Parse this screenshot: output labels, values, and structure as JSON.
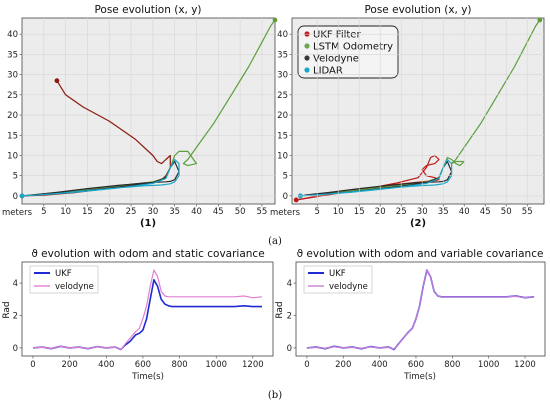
{
  "figure": {
    "caption_a": "(a)",
    "caption_b": "(b)"
  },
  "colors": {
    "ukf_filter": "#c01818",
    "lstm": "#6aa84f",
    "velodyne_pose": "#3a3a3a",
    "lidar": "#1aa6c8",
    "ukf_theta": "#1f2bd6",
    "velodyne_theta": "#e07fd0"
  },
  "chart_data": [
    {
      "type": "line",
      "panel_label": "(1)",
      "title": "Pose evolution (x, y)",
      "xlabel": "meters",
      "ylabel": "",
      "xlim": [
        0,
        58
      ],
      "ylim": [
        -2,
        44
      ],
      "xticks": [
        5,
        10,
        15,
        20,
        25,
        30,
        35,
        40,
        45,
        50,
        55
      ],
      "yticks": [
        0,
        5,
        10,
        15,
        20,
        25,
        30,
        35,
        40
      ],
      "grid": true,
      "series": [
        {
          "name": "UKF Filter",
          "color": "#8b1a10",
          "x": [
            8,
            10,
            14,
            20,
            26,
            30,
            31,
            32,
            33,
            34,
            34,
            33,
            32,
            31,
            30,
            28,
            24,
            18,
            12,
            5,
            0
          ],
          "y": [
            28.5,
            25,
            22,
            18.5,
            14,
            10,
            8.5,
            8,
            9,
            10,
            7,
            5,
            4,
            3.5,
            3.2,
            3,
            2.5,
            1.6,
            0.8,
            0.2,
            0
          ]
        },
        {
          "name": "LSTM Odometry",
          "color": "#5e9e3c",
          "x": [
            0,
            6,
            12,
            18,
            24,
            30,
            33,
            34,
            35,
            36,
            38,
            39,
            40,
            38,
            37,
            38,
            40,
            44,
            48,
            52,
            55,
            57,
            58
          ],
          "y": [
            0,
            0.6,
            1.3,
            2,
            2.7,
            3.5,
            4.5,
            7,
            10,
            11,
            11,
            9.5,
            8,
            7.5,
            8,
            9,
            12,
            18,
            25,
            32,
            38,
            42,
            43.5
          ]
        },
        {
          "name": "Velodyne",
          "color": "#2b2b2b",
          "x": [
            0,
            6,
            12,
            18,
            24,
            30,
            33,
            34,
            35,
            36,
            35,
            34,
            33,
            31,
            28,
            22,
            15,
            8,
            2
          ],
          "y": [
            0,
            0.5,
            1,
            1.7,
            2.4,
            3.3,
            4.5,
            7,
            8.5,
            6,
            4,
            3.6,
            3.5,
            3.4,
            3.2,
            2.6,
            1.8,
            0.9,
            0.2
          ]
        },
        {
          "name": "LIDAR",
          "color": "#1aa6c8",
          "x": [
            0,
            6,
            12,
            18,
            24,
            30,
            33,
            34,
            35,
            36,
            36,
            35,
            34,
            32,
            28,
            22,
            15,
            8,
            2
          ],
          "y": [
            0,
            0.4,
            0.9,
            1.5,
            2.2,
            3.1,
            4.3,
            7,
            9,
            8,
            5,
            3.5,
            3,
            2.7,
            2.5,
            2,
            1.3,
            0.6,
            0.1
          ]
        }
      ]
    },
    {
      "type": "line",
      "panel_label": "(2)",
      "title": "Pose evolution (x, y)",
      "xlabel": "meters",
      "ylabel": "",
      "xlim": [
        -1,
        59
      ],
      "ylim": [
        -2,
        44
      ],
      "xticks": [
        5,
        10,
        15,
        20,
        25,
        30,
        35,
        40,
        45,
        50,
        55
      ],
      "yticks": [
        0,
        5,
        10,
        15,
        20,
        25,
        30,
        35,
        40
      ],
      "grid": true,
      "legend": {
        "position": "top-left",
        "entries": [
          "UKF Filter",
          "LSTM Odometry",
          "Velodyne",
          "LIDAR"
        ]
      },
      "series": [
        {
          "name": "UKF Filter",
          "color": "#c01818",
          "x": [
            0,
            6,
            12,
            18,
            24,
            29,
            31,
            32,
            33,
            34,
            33,
            31,
            30,
            31,
            33,
            34,
            33,
            31,
            28,
            22,
            15,
            8,
            0
          ],
          "y": [
            -1,
            0,
            1,
            2,
            3.2,
            4.5,
            7,
            9.5,
            10,
            9,
            8,
            7.5,
            6.5,
            5,
            4.5,
            4,
            3.8,
            3.6,
            3.3,
            2.6,
            1.6,
            0.5,
            -1
          ]
        },
        {
          "name": "LSTM Odometry",
          "color": "#5e9e3c",
          "x": [
            1,
            7,
            13,
            19,
            25,
            31,
            34,
            35,
            36,
            37,
            38,
            39,
            40,
            38,
            37,
            38,
            40,
            44,
            48,
            52,
            55,
            57,
            58
          ],
          "y": [
            0,
            0.6,
            1.3,
            2,
            2.7,
            3.5,
            4.5,
            7,
            9.5,
            9,
            8,
            7.5,
            8.5,
            8.5,
            8,
            9,
            12,
            18,
            25,
            32,
            38,
            42,
            43.5
          ]
        },
        {
          "name": "Velodyne",
          "color": "#2b2b2b",
          "x": [
            1,
            7,
            13,
            19,
            25,
            31,
            34,
            35,
            36,
            37,
            36,
            35,
            34,
            32,
            28,
            22,
            15,
            8,
            2
          ],
          "y": [
            0,
            0.5,
            1,
            1.7,
            2.4,
            3.3,
            4.5,
            7,
            8.5,
            6,
            4,
            3.6,
            3.5,
            3.4,
            3.2,
            2.6,
            1.8,
            0.9,
            0.2
          ]
        },
        {
          "name": "LIDAR",
          "color": "#1aa6c8",
          "x": [
            1,
            7,
            13,
            19,
            25,
            31,
            34,
            35,
            36,
            37,
            37,
            36,
            35,
            33,
            29,
            23,
            16,
            9,
            3
          ],
          "y": [
            0,
            0.4,
            0.9,
            1.5,
            2.2,
            3.1,
            4.3,
            7,
            9,
            8,
            5,
            3.5,
            3,
            2.7,
            2.5,
            2,
            1.3,
            0.6,
            0.1
          ]
        }
      ]
    },
    {
      "type": "line",
      "title": "ϑ evolution with odom and static covariance",
      "xlabel": "Time(s)",
      "ylabel": "Rad",
      "xlim": [
        -60,
        1310
      ],
      "ylim": [
        -0.5,
        5.3
      ],
      "xticks": [
        0,
        200,
        400,
        600,
        800,
        1000,
        1200
      ],
      "yticks": [
        0,
        2,
        4
      ],
      "grid": false,
      "legend": {
        "position": "top-left",
        "entries": [
          "UKF",
          "velodyne"
        ]
      },
      "series": [
        {
          "name": "UKF",
          "color": "#1f2bd6",
          "x": [
            0,
            50,
            100,
            150,
            200,
            250,
            300,
            350,
            400,
            450,
            480,
            500,
            530,
            560,
            580,
            600,
            620,
            640,
            660,
            680,
            700,
            720,
            740,
            760,
            800,
            900,
            1000,
            1100,
            1150,
            1200,
            1250
          ],
          "y": [
            0,
            0.05,
            -0.05,
            0.1,
            0,
            0.05,
            -0.05,
            0.08,
            0,
            0.05,
            -0.1,
            0.15,
            0.4,
            0.8,
            0.9,
            1.1,
            1.8,
            3.0,
            4.2,
            3.8,
            3.0,
            2.7,
            2.6,
            2.55,
            2.55,
            2.55,
            2.55,
            2.55,
            2.6,
            2.55,
            2.55
          ]
        },
        {
          "name": "velodyne",
          "color": "#e07fd0",
          "x": [
            0,
            50,
            100,
            150,
            200,
            250,
            300,
            350,
            400,
            450,
            480,
            500,
            530,
            560,
            580,
            600,
            620,
            640,
            660,
            680,
            700,
            720,
            740,
            760,
            800,
            900,
            1000,
            1100,
            1150,
            1200,
            1250
          ],
          "y": [
            0,
            0.05,
            -0.05,
            0.1,
            0,
            0.05,
            -0.05,
            0.08,
            0,
            0.05,
            -0.1,
            0.2,
            0.6,
            1.0,
            1.2,
            1.8,
            2.6,
            3.8,
            4.8,
            4.4,
            3.5,
            3.2,
            3.15,
            3.15,
            3.15,
            3.15,
            3.15,
            3.15,
            3.2,
            3.1,
            3.15
          ]
        }
      ]
    },
    {
      "type": "line",
      "title": "ϑ evolution with odom and variable covariance",
      "xlabel": "Time(s)",
      "ylabel": "Rad",
      "xlim": [
        -60,
        1310
      ],
      "ylim": [
        -0.5,
        5.3
      ],
      "xticks": [
        0,
        200,
        400,
        600,
        800,
        1000,
        1200
      ],
      "yticks": [
        0,
        2,
        4
      ],
      "grid": false,
      "legend": {
        "position": "top-left",
        "entries": [
          "UKF",
          "velodyne"
        ]
      },
      "series": [
        {
          "name": "UKF",
          "color": "#1f2bd6",
          "x": [
            0,
            50,
            100,
            150,
            200,
            250,
            300,
            350,
            400,
            450,
            480,
            500,
            530,
            560,
            580,
            600,
            620,
            640,
            660,
            680,
            700,
            720,
            740,
            760,
            800,
            900,
            1000,
            1100,
            1150,
            1200,
            1250
          ],
          "y": [
            0,
            0.05,
            -0.05,
            0.1,
            0,
            0.05,
            -0.05,
            0.08,
            0,
            0.05,
            -0.1,
            0.2,
            0.6,
            1.0,
            1.2,
            1.8,
            2.6,
            3.8,
            4.8,
            4.4,
            3.5,
            3.2,
            3.15,
            3.15,
            3.15,
            3.15,
            3.15,
            3.15,
            3.2,
            3.1,
            3.15
          ]
        },
        {
          "name": "velodyne",
          "color": "#c77fd6",
          "x": [
            0,
            50,
            100,
            150,
            200,
            250,
            300,
            350,
            400,
            450,
            480,
            500,
            530,
            560,
            580,
            600,
            620,
            640,
            660,
            680,
            700,
            720,
            740,
            760,
            800,
            900,
            1000,
            1100,
            1150,
            1200,
            1250
          ],
          "y": [
            0,
            0.03,
            -0.03,
            0.08,
            0,
            0.03,
            -0.03,
            0.06,
            0,
            0.03,
            -0.08,
            0.18,
            0.6,
            1.0,
            1.2,
            1.8,
            2.6,
            3.8,
            4.8,
            4.4,
            3.5,
            3.2,
            3.15,
            3.15,
            3.15,
            3.15,
            3.15,
            3.15,
            3.18,
            3.1,
            3.15
          ]
        }
      ]
    }
  ]
}
